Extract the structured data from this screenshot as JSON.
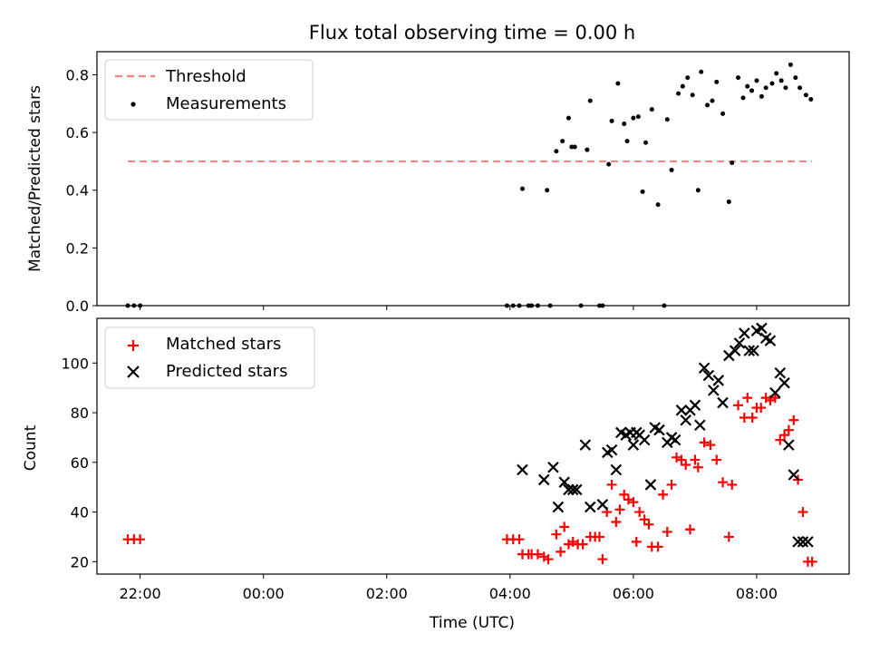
{
  "title": "Flux total observing time = 0.00 h",
  "colors": {
    "threshold": "#ff7f7f",
    "measurement": "#000000",
    "matched": "#ff0000",
    "predicted": "#000000"
  },
  "chart_data": [
    {
      "type": "scatter",
      "ylabel": "Matched/Predicted stars",
      "xlim": [
        -2.7,
        9.5
      ],
      "ylim": [
        0,
        0.88
      ],
      "yticks": [
        0.0,
        0.2,
        0.4,
        0.6,
        0.8
      ],
      "ytick_labels": [
        "0.0",
        "0.2",
        "0.4",
        "0.6",
        "0.8"
      ],
      "grid": false,
      "legend": {
        "placement": "upper-left",
        "entries": [
          "Threshold",
          "Measurements"
        ]
      },
      "threshold": {
        "name": "Threshold",
        "value": 0.5,
        "x_range": [
          -2.2,
          8.9
        ]
      },
      "measurements": {
        "name": "Measurements",
        "x": [
          -2.2,
          -2.1,
          -2.0,
          3.95,
          4.05,
          4.15,
          4.2,
          4.3,
          4.35,
          4.45,
          4.6,
          4.65,
          4.75,
          4.85,
          4.95,
          5.0,
          5.05,
          5.15,
          5.25,
          5.3,
          5.45,
          5.5,
          5.6,
          5.65,
          5.75,
          5.85,
          5.9,
          6.0,
          6.08,
          6.15,
          6.2,
          6.3,
          6.4,
          6.5,
          6.55,
          6.62,
          6.73,
          6.8,
          6.88,
          6.96,
          7.05,
          7.1,
          7.2,
          7.28,
          7.35,
          7.45,
          7.55,
          7.6,
          7.7,
          7.78,
          7.85,
          7.92,
          8.0,
          8.08,
          8.15,
          8.25,
          8.32,
          8.4,
          8.47,
          8.55,
          8.63,
          8.7,
          8.8,
          8.88
        ],
        "y": [
          0.0,
          0.0,
          0.0,
          0.0,
          0.0,
          0.0,
          0.405,
          0.0,
          0.0,
          0.0,
          0.4,
          0.0,
          0.535,
          0.57,
          0.65,
          0.55,
          0.55,
          0.0,
          0.54,
          0.71,
          0.0,
          0.0,
          0.49,
          0.64,
          0.77,
          0.63,
          0.57,
          0.65,
          0.655,
          0.395,
          0.565,
          0.68,
          0.35,
          0.0,
          0.645,
          0.47,
          0.735,
          0.76,
          0.79,
          0.73,
          0.4,
          0.81,
          0.695,
          0.71,
          0.775,
          0.665,
          0.36,
          0.495,
          0.79,
          0.72,
          0.76,
          0.745,
          0.78,
          0.725,
          0.755,
          0.77,
          0.805,
          0.78,
          0.755,
          0.835,
          0.79,
          0.755,
          0.73,
          0.715
        ]
      }
    },
    {
      "type": "scatter",
      "xlabel": "Time (UTC)",
      "ylabel": "Count",
      "xlim": [
        -2.7,
        9.5
      ],
      "ylim": [
        15,
        118
      ],
      "xticks": [
        -2,
        0,
        2,
        4,
        6,
        8
      ],
      "xtick_labels": [
        "22:00",
        "00:00",
        "02:00",
        "04:00",
        "06:00",
        "08:00"
      ],
      "yticks": [
        20,
        40,
        60,
        80,
        100
      ],
      "ytick_labels": [
        "20",
        "40",
        "60",
        "80",
        "100"
      ],
      "grid": false,
      "legend": {
        "placement": "upper-left",
        "entries": [
          "Matched stars",
          "Predicted stars"
        ]
      },
      "series": [
        {
          "name": "Matched stars",
          "marker": "+",
          "x": [
            -2.2,
            -2.1,
            -2.0,
            3.95,
            4.05,
            4.15,
            4.2,
            4.3,
            4.35,
            4.45,
            4.55,
            4.62,
            4.68,
            4.75,
            4.82,
            4.88,
            4.95,
            5.02,
            5.1,
            5.18,
            5.22,
            5.3,
            5.38,
            5.45,
            5.5,
            5.57,
            5.65,
            5.72,
            5.78,
            5.85,
            5.92,
            6.0,
            6.05,
            6.1,
            6.18,
            6.25,
            6.3,
            6.4,
            6.48,
            6.55,
            6.62,
            6.7,
            6.78,
            6.85,
            6.92,
            7.0,
            7.05,
            7.15,
            7.25,
            7.35,
            7.45,
            7.55,
            7.6,
            7.7,
            7.8,
            7.85,
            7.93,
            8.0,
            8.07,
            8.15,
            8.22,
            8.3,
            8.38,
            8.45,
            8.52,
            8.6,
            8.67,
            8.75,
            8.83,
            8.9
          ],
          "y": [
            29,
            29,
            29,
            29,
            29,
            29,
            23,
            23,
            23,
            23,
            22,
            21,
            21,
            31,
            24,
            34,
            27,
            28,
            27,
            27,
            36,
            30,
            30,
            30,
            21,
            40,
            51,
            36,
            41,
            47,
            45,
            44,
            28,
            40,
            37,
            35,
            26,
            26,
            47,
            32,
            51,
            62,
            61,
            59,
            33,
            61,
            58,
            68,
            67,
            61,
            52,
            30,
            51,
            83,
            78,
            86,
            78,
            82,
            82,
            86,
            85,
            86,
            69,
            71,
            73,
            77,
            53,
            40,
            20,
            20
          ],
          "visible_x": [
            -2.2,
            -2.1,
            -2.0,
            3.95,
            4.05,
            4.15,
            4.2,
            4.3,
            4.35,
            4.45,
            4.55,
            4.62,
            4.75,
            4.82,
            4.88,
            4.95,
            5.02,
            5.1,
            5.18,
            5.3,
            5.38,
            5.45,
            5.5,
            5.57,
            5.65,
            5.72,
            5.78,
            5.85,
            5.92,
            6.0,
            6.05,
            6.1,
            6.18,
            6.25,
            6.3,
            6.4,
            6.48,
            6.55,
            6.62,
            6.7,
            6.78,
            6.85,
            6.92,
            7.0,
            7.05,
            7.15,
            7.25,
            7.35,
            7.45,
            7.55,
            7.6,
            7.7,
            7.8,
            7.85,
            7.93,
            8.0,
            8.07,
            8.15,
            8.22,
            8.3,
            8.38,
            8.45,
            8.52,
            8.6,
            8.67,
            8.75,
            8.83,
            8.9
          ]
        },
        {
          "name": "Predicted stars",
          "marker": "x",
          "x": [
            4.2,
            4.55,
            4.7,
            4.78,
            4.88,
            4.95,
            5.02,
            5.08,
            5.22,
            5.3,
            5.5,
            5.58,
            5.65,
            5.72,
            5.8,
            5.88,
            5.95,
            6.0,
            6.05,
            6.1,
            6.18,
            6.28,
            6.35,
            6.42,
            6.55,
            6.62,
            6.68,
            6.78,
            6.85,
            6.92,
            7.0,
            7.08,
            7.15,
            7.22,
            7.3,
            7.38,
            7.45,
            7.55,
            7.65,
            7.72,
            7.8,
            7.88,
            7.95,
            8.0,
            8.08,
            8.15,
            8.22,
            8.3,
            8.38,
            8.45,
            8.52,
            8.6,
            8.67,
            8.75,
            8.83
          ],
          "y": [
            57,
            53,
            58,
            42,
            52,
            49,
            49,
            49,
            67,
            42,
            43,
            64,
            65,
            57,
            72,
            71,
            72,
            67,
            72,
            71,
            69,
            51,
            74,
            73,
            68,
            70,
            69,
            81,
            77,
            81,
            83,
            75,
            98,
            95,
            89,
            93,
            84,
            103,
            105,
            108,
            112,
            105,
            105,
            113,
            114,
            110,
            109,
            88,
            96,
            92,
            67,
            55,
            28,
            28,
            28
          ]
        }
      ]
    }
  ]
}
